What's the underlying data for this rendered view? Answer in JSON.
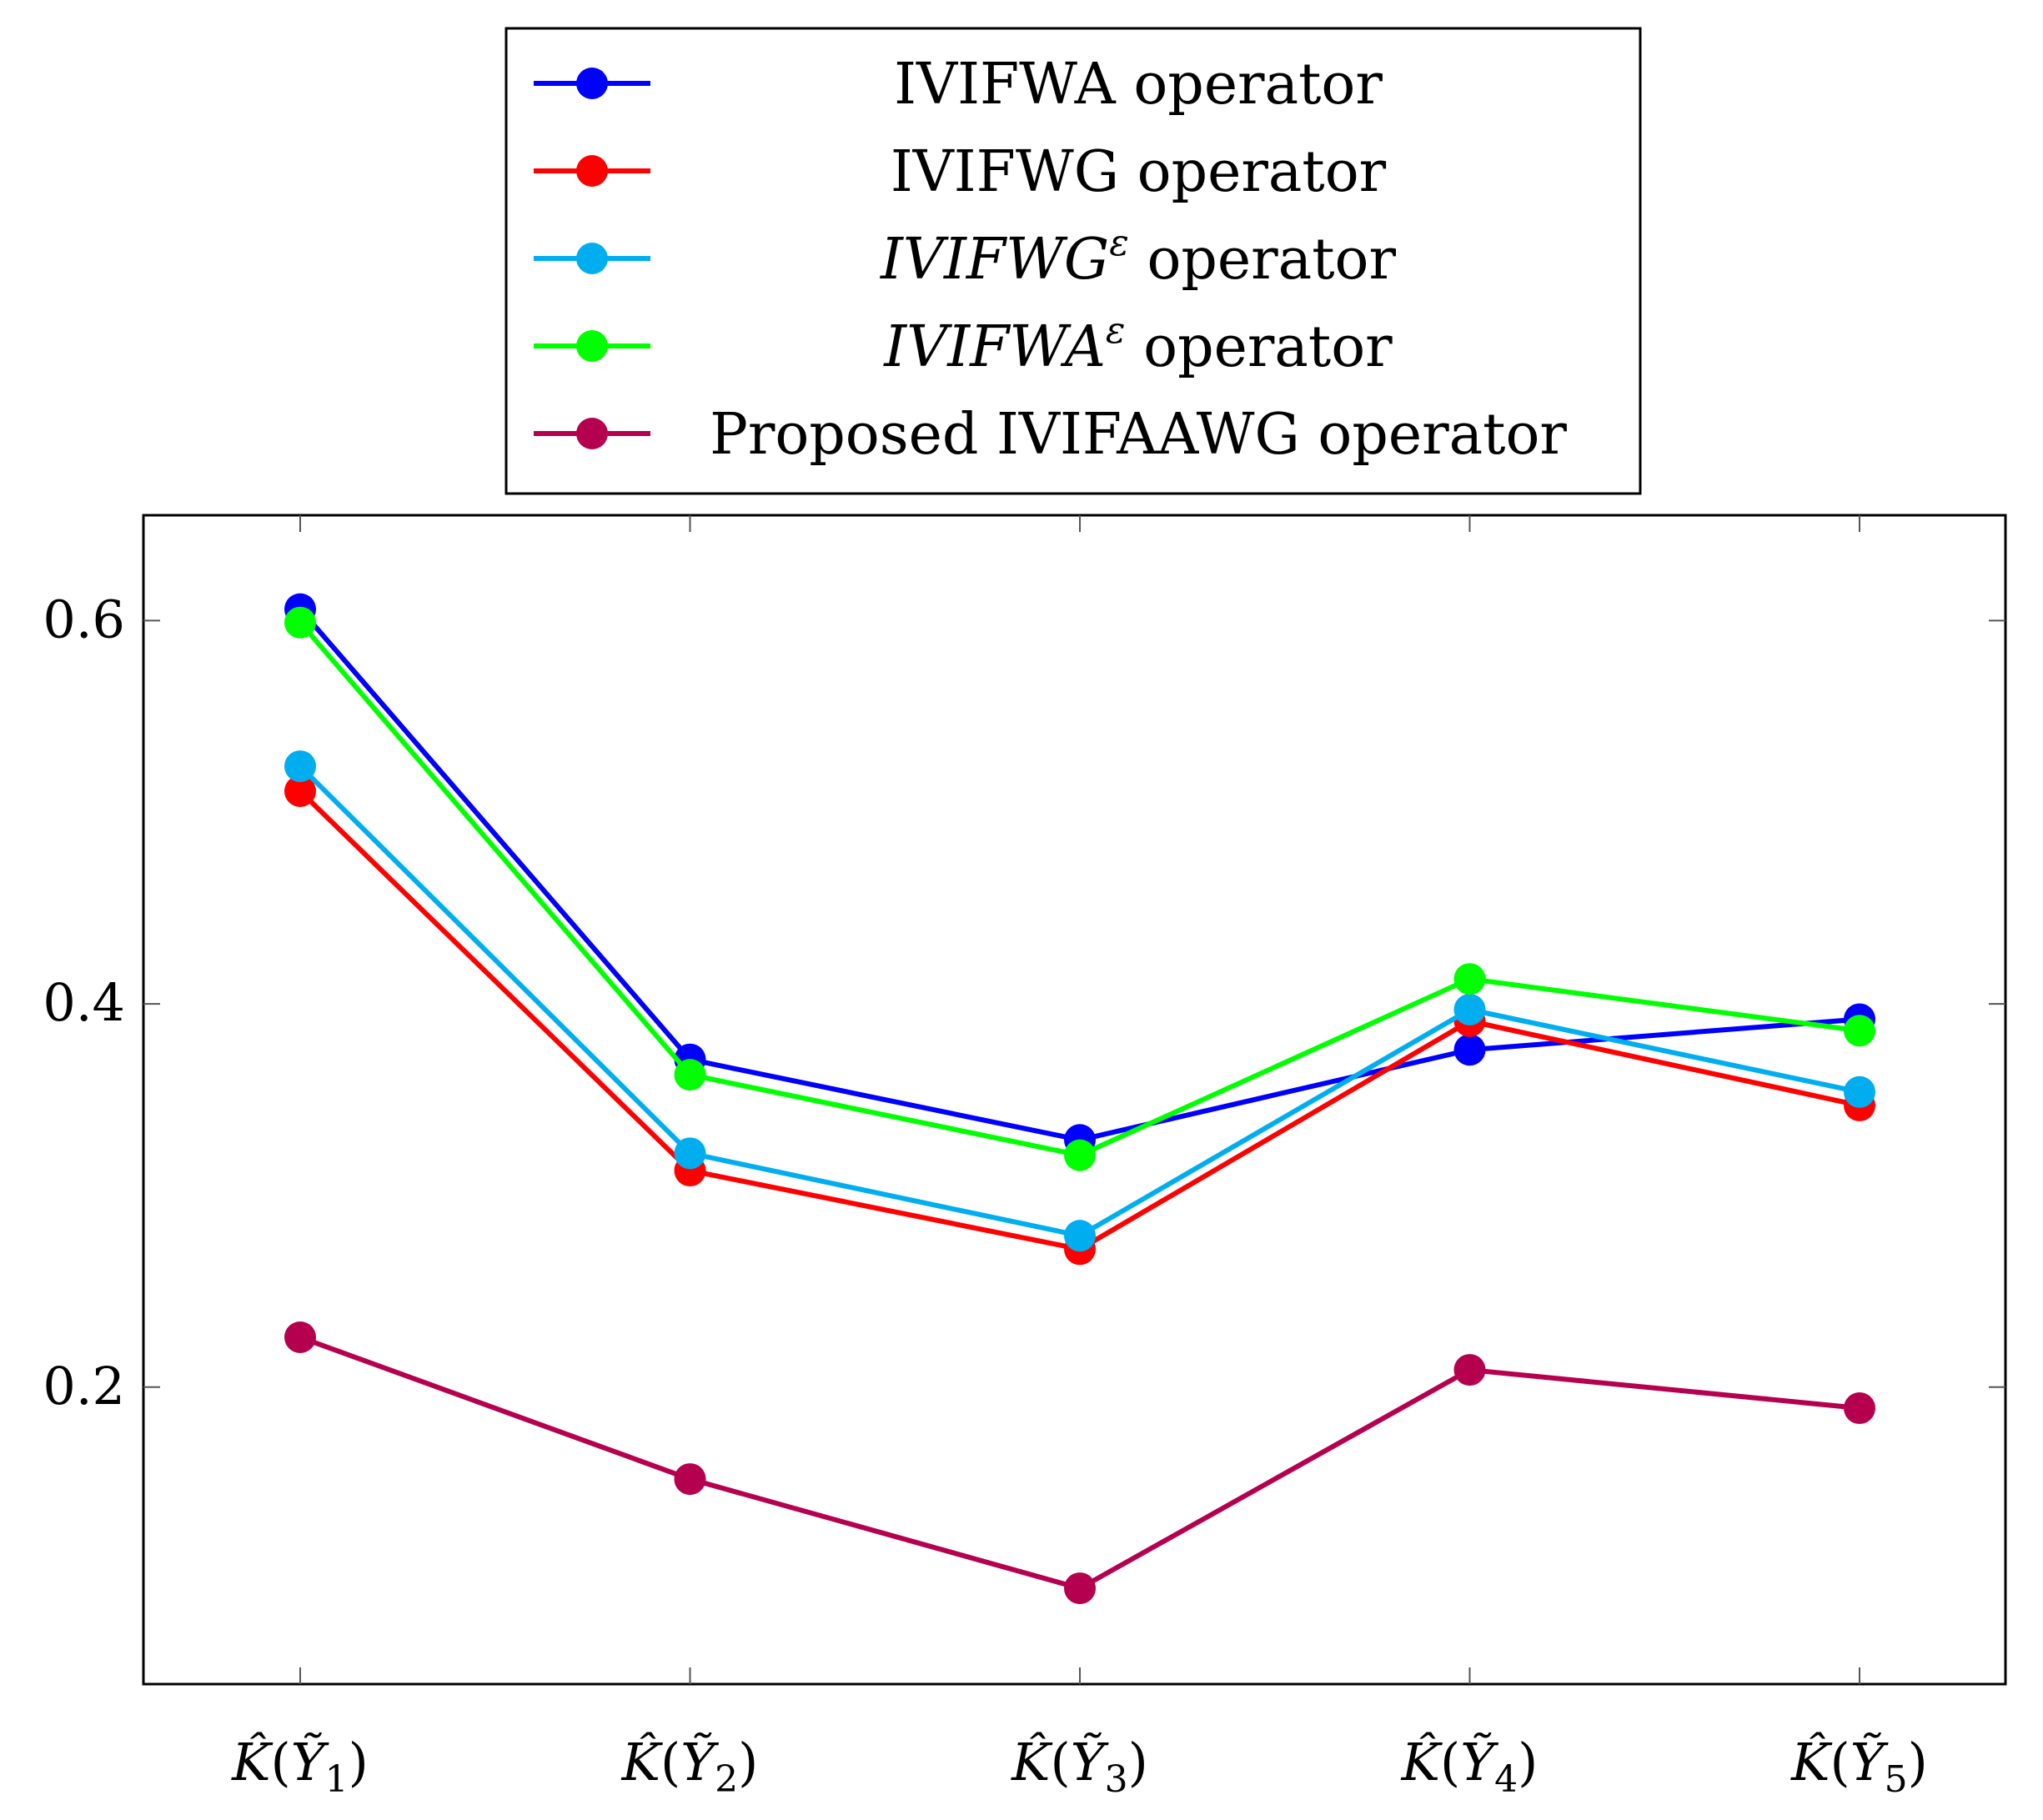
{
  "chart_data": {
    "type": "line",
    "title": "",
    "xlabel": "",
    "ylabel": "",
    "categories": [
      {
        "base": "K",
        "var": "Y",
        "sub": "1"
      },
      {
        "base": "K",
        "var": "Y",
        "sub": "2"
      },
      {
        "base": "K",
        "var": "Y",
        "sub": "3"
      },
      {
        "base": "K",
        "var": "Y",
        "sub": "4"
      },
      {
        "base": "K",
        "var": "Y",
        "sub": "5"
      }
    ],
    "category_labels": [
      "K̂(Ỹ1)",
      "K̂(Ỹ2)",
      "K̂(Ỹ3)",
      "K̂(Ỹ4)",
      "K̂(Ỹ5)"
    ],
    "ylim": [
      0.045,
      0.655
    ],
    "yticks": [
      0.2,
      0.4,
      0.6
    ],
    "ytick_labels": [
      "0.2",
      "0.4",
      "0.6"
    ],
    "legend_position": "top-center-outside",
    "series": [
      {
        "name": "IVIFWA operator",
        "name_parts": {
          "text": "IVIFWA operator"
        },
        "color": "#0000ff",
        "values": [
          0.606,
          0.371,
          0.329,
          0.376,
          0.392
        ]
      },
      {
        "name": "IVIFWG operator",
        "name_parts": {
          "text": "IVIFWG operator"
        },
        "color": "#ff0000",
        "values": [
          0.511,
          0.313,
          0.272,
          0.391,
          0.347
        ]
      },
      {
        "name": "IVIFWG^ε operator",
        "name_parts": {
          "italic": "IVIFWG",
          "sup": "ε",
          "rest": " operator"
        },
        "color": "#00aeef",
        "values": [
          0.524,
          0.322,
          0.279,
          0.397,
          0.354
        ]
      },
      {
        "name": "IVIFWA^ε operator",
        "name_parts": {
          "italic": "IVIFWA",
          "sup": "ε",
          "rest": " operator"
        },
        "color": "#00ff00",
        "values": [
          0.599,
          0.363,
          0.321,
          0.413,
          0.386
        ]
      },
      {
        "name": "Proposed IVIFAAWG operator",
        "name_parts": {
          "text": "Proposed IVIFAAWG operator"
        },
        "color": "#b5004f",
        "values": [
          0.226,
          0.152,
          0.095,
          0.209,
          0.189
        ]
      }
    ]
  }
}
